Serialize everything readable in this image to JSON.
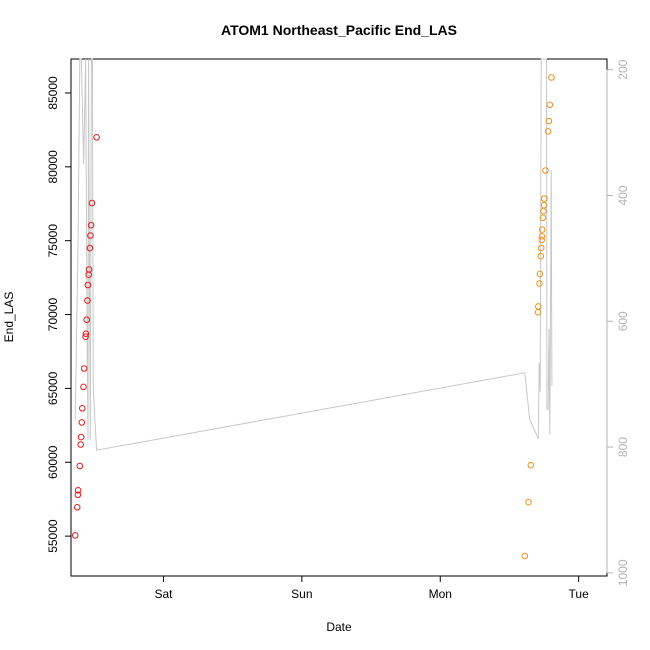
{
  "chart_data": {
    "type": "scatter",
    "title": "ATOM1 Northeast_Pacific End_LAS",
    "xlabel": "Date",
    "ylabel": "End_LAS",
    "x_axis": {
      "range": [
        "2016-08-19T07:58",
        "2016-08-23T04:55"
      ],
      "ticks": [
        {
          "label": "Sat",
          "value": "2016-08-20T00:00"
        },
        {
          "label": "Sun",
          "value": "2016-08-21T00:00"
        },
        {
          "label": "Mon",
          "value": "2016-08-22T00:00"
        },
        {
          "label": "Tue",
          "value": "2016-08-23T00:00"
        }
      ]
    },
    "y_axis": {
      "range": [
        52300,
        87300
      ],
      "ticks": [
        55000,
        60000,
        65000,
        70000,
        75000,
        80000,
        85000
      ]
    },
    "y2_axis": {
      "range": [
        1005,
        183
      ],
      "reversed": true,
      "ticks": [
        200,
        400,
        600,
        800,
        1000
      ]
    },
    "colors": {
      "series_1": "#e41a1c",
      "series_2": "#f0901e",
      "line": "#c8c8c8",
      "axis": "#000000",
      "right_axis": "#b3b3b3"
    },
    "series": [
      {
        "color": "#e41a1c",
        "points": [
          [
            "2016-08-19T08:42",
            55050
          ],
          [
            "2016-08-19T09:03",
            56950
          ],
          [
            "2016-08-19T09:10",
            57800
          ],
          [
            "2016-08-19T09:12",
            58100
          ],
          [
            "2016-08-19T09:30",
            59750
          ],
          [
            "2016-08-19T09:39",
            61200
          ],
          [
            "2016-08-19T09:43",
            61700
          ],
          [
            "2016-08-19T09:50",
            62700
          ],
          [
            "2016-08-19T09:56",
            63650
          ],
          [
            "2016-08-19T10:08",
            65100
          ],
          [
            "2016-08-19T10:15",
            66350
          ],
          [
            "2016-08-19T10:30",
            68500
          ],
          [
            "2016-08-19T10:33",
            68700
          ],
          [
            "2016-08-19T10:41",
            69650
          ],
          [
            "2016-08-19T10:49",
            70950
          ],
          [
            "2016-08-19T10:54",
            72000
          ],
          [
            "2016-08-19T11:02",
            72700
          ],
          [
            "2016-08-19T11:06",
            73050
          ],
          [
            "2016-08-19T11:15",
            74500
          ],
          [
            "2016-08-19T11:20",
            75350
          ],
          [
            "2016-08-19T11:27",
            76050
          ],
          [
            "2016-08-19T11:35",
            77550
          ],
          [
            "2016-08-19T12:24",
            82000
          ]
        ]
      },
      {
        "color": "#f0901e",
        "points": [
          [
            "2016-08-22T14:40",
            53650
          ],
          [
            "2016-08-22T15:18",
            57300
          ],
          [
            "2016-08-22T15:42",
            59800
          ],
          [
            "2016-08-22T16:57",
            70150
          ],
          [
            "2016-08-22T17:00",
            70550
          ],
          [
            "2016-08-22T17:13",
            72100
          ],
          [
            "2016-08-22T17:17",
            72750
          ],
          [
            "2016-08-22T17:26",
            73950
          ],
          [
            "2016-08-22T17:30",
            74500
          ],
          [
            "2016-08-22T17:36",
            75050
          ],
          [
            "2016-08-22T17:38",
            75300
          ],
          [
            "2016-08-22T17:41",
            75750
          ],
          [
            "2016-08-22T17:48",
            76550
          ],
          [
            "2016-08-22T17:53",
            77000
          ],
          [
            "2016-08-22T17:59",
            77400
          ],
          [
            "2016-08-22T18:02",
            77850
          ],
          [
            "2016-08-22T18:14",
            79750
          ],
          [
            "2016-08-22T18:42",
            82400
          ],
          [
            "2016-08-22T18:50",
            83100
          ],
          [
            "2016-08-22T19:01",
            84200
          ],
          [
            "2016-08-22T19:16",
            86050
          ]
        ]
      }
    ],
    "line_series": {
      "axis": "right",
      "color": "#c8c8c8",
      "points": [
        [
          "2016-08-19T08:42",
          757
        ],
        [
          "2016-08-19T09:12",
          470
        ],
        [
          "2016-08-19T09:30",
          100
        ],
        [
          "2016-08-19T09:45",
          100
        ],
        [
          "2016-08-19T10:10",
          350
        ],
        [
          "2016-08-19T10:30",
          100
        ],
        [
          "2016-08-19T10:47",
          645
        ],
        [
          "2016-08-19T10:55",
          788
        ],
        [
          "2016-08-19T11:00",
          100
        ],
        [
          "2016-08-19T11:19",
          788
        ],
        [
          "2016-08-19T11:30",
          100
        ],
        [
          "2016-08-19T11:41",
          100
        ],
        [
          "2016-08-19T11:50",
          709
        ],
        [
          "2016-08-19T12:24",
          805
        ],
        [
          "2016-08-22T14:40",
          682
        ],
        [
          "2016-08-22T15:30",
          755
        ],
        [
          "2016-08-22T17:00",
          787
        ],
        [
          "2016-08-22T17:10",
          666
        ],
        [
          "2016-08-22T17:20",
          712
        ],
        [
          "2016-08-22T17:30",
          100
        ],
        [
          "2016-08-22T18:10",
          100
        ],
        [
          "2016-08-22T18:25",
          100
        ],
        [
          "2016-08-22T18:30",
          740
        ],
        [
          "2016-08-22T18:42",
          740
        ],
        [
          "2016-08-22T18:52",
          612
        ],
        [
          "2016-08-22T19:00",
          780
        ],
        [
          "2016-08-22T19:14",
          360
        ],
        [
          "2016-08-22T19:22",
          703
        ]
      ]
    }
  }
}
